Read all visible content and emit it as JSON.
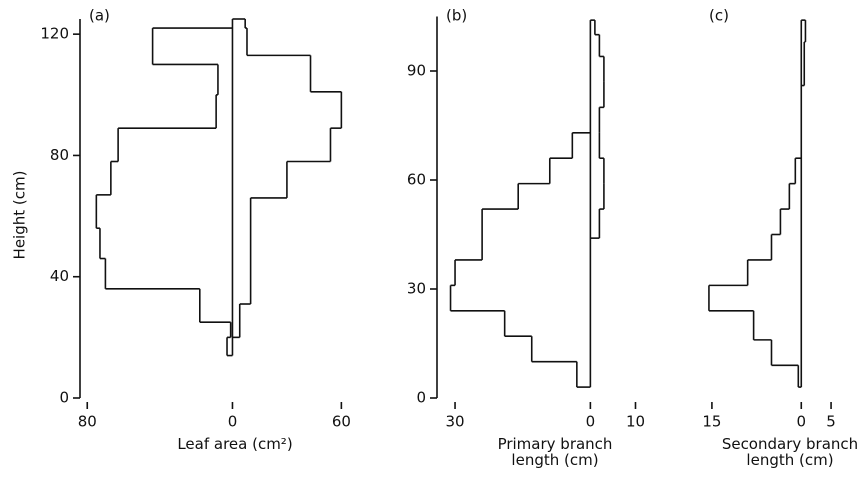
{
  "chart_data": [
    {
      "type": "step",
      "title": "(a)",
      "xlabel": "Leaf area (cm²)",
      "ylabel": "Height (cm)",
      "xlim": [
        -84,
        62
      ],
      "xticks": [
        {
          "value": -80,
          "label": "80"
        },
        0,
        60
      ],
      "ylim": [
        0,
        125
      ],
      "yticks": [
        0,
        40,
        80,
        120
      ],
      "series": [
        {
          "bins": [
            14,
            20,
            25,
            36,
            46,
            56,
            67,
            78,
            89,
            100,
            110,
            122
          ],
          "values": [
            -3,
            -1,
            -18,
            -70,
            -73,
            -75,
            -67,
            -63,
            -9,
            -8,
            -44
          ]
        },
        {
          "bins": [
            20,
            31,
            66,
            78,
            89,
            101,
            113,
            122,
            125
          ],
          "values": [
            4,
            10,
            30,
            54,
            60,
            43,
            8,
            7
          ]
        }
      ]
    },
    {
      "type": "step",
      "title": "(b)",
      "xlabel": "Primary branch length (cm)",
      "xlim": [
        -34,
        11
      ],
      "xticks": [
        {
          "value": -30,
          "label": "30"
        },
        0,
        10
      ],
      "ylim": [
        0,
        105
      ],
      "yticks": [
        0,
        30,
        60,
        90
      ],
      "series": [
        {
          "bins": [
            3,
            10,
            17,
            24,
            31,
            38,
            52,
            59,
            66,
            73
          ],
          "values": [
            -3,
            -13,
            -19,
            -31,
            -30,
            -24,
            -16,
            -9,
            -4
          ]
        },
        {
          "bins": [
            44,
            52,
            59,
            66,
            73,
            80,
            87,
            94,
            100,
            104
          ],
          "values": [
            2,
            3,
            3,
            2,
            2,
            3,
            3,
            2,
            1
          ]
        }
      ]
    },
    {
      "type": "step",
      "title": "(c)",
      "xlabel": "Secondary branch length (cm)",
      "xlim": [
        -17,
        6.5
      ],
      "xticks": [
        {
          "value": -15,
          "label": "15"
        },
        0,
        5
      ],
      "ylim": [
        0,
        105
      ],
      "series": [
        {
          "bins": [
            3,
            9,
            16,
            24,
            31,
            38,
            45,
            52,
            59,
            66
          ],
          "values": [
            -0.5,
            -5,
            -8,
            -15.5,
            -9,
            -5,
            -3.5,
            -2,
            -1
          ]
        },
        {
          "bins": [
            86,
            98,
            104
          ],
          "values": [
            0.5,
            0.7
          ]
        }
      ]
    }
  ]
}
